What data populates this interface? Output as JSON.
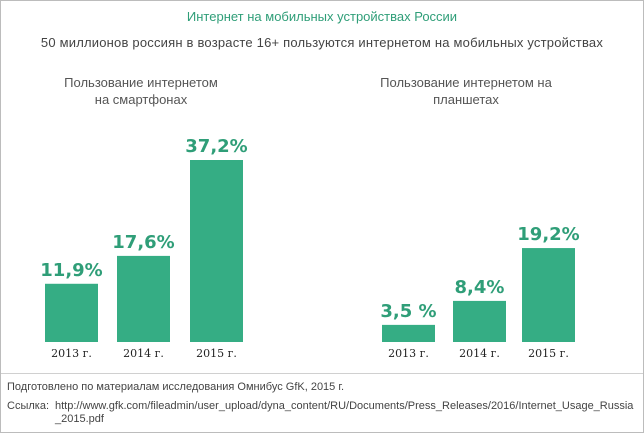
{
  "title": "Интернет на мобильных устройствах России",
  "subtitle": "50 миллионов россиян в возрасте 16+ пользуются интернетом на мобильных устройствах",
  "footer": {
    "source": "Подготовлено по материалам исследования Омнибус GfK, 2015 г.",
    "link_label": "Ссылка:",
    "link_url": "http://www.gfk.com/fileadmin/user_upload/dyna_content/RU/Documents/Press_Releases/2016/Internet_Usage_Russia_2015.pdf"
  },
  "colors": {
    "bar": "#35ad84",
    "value_label": "#2f9e78",
    "title": "#2f9e78"
  },
  "chart_data": [
    {
      "type": "bar",
      "title": "Пользование интернетом\nна смартфонах",
      "categories": [
        "2013 г.",
        "2014 г.",
        "2015 г."
      ],
      "values": [
        11.9,
        17.6,
        37.2
      ],
      "value_labels": [
        "11,9%",
        "17,6%",
        "37,2%"
      ],
      "ylim": [
        0,
        40
      ],
      "grid": false,
      "legend": "none"
    },
    {
      "type": "bar",
      "title": "Пользование интернетом на\nпланшетах",
      "categories": [
        "2013 г.",
        "2014 г.",
        "2015 г."
      ],
      "values": [
        3.5,
        8.4,
        19.2
      ],
      "value_labels": [
        "3,5 %",
        "8,4%",
        "19,2%"
      ],
      "ylim": [
        0,
        40
      ],
      "grid": false,
      "legend": "none"
    }
  ]
}
